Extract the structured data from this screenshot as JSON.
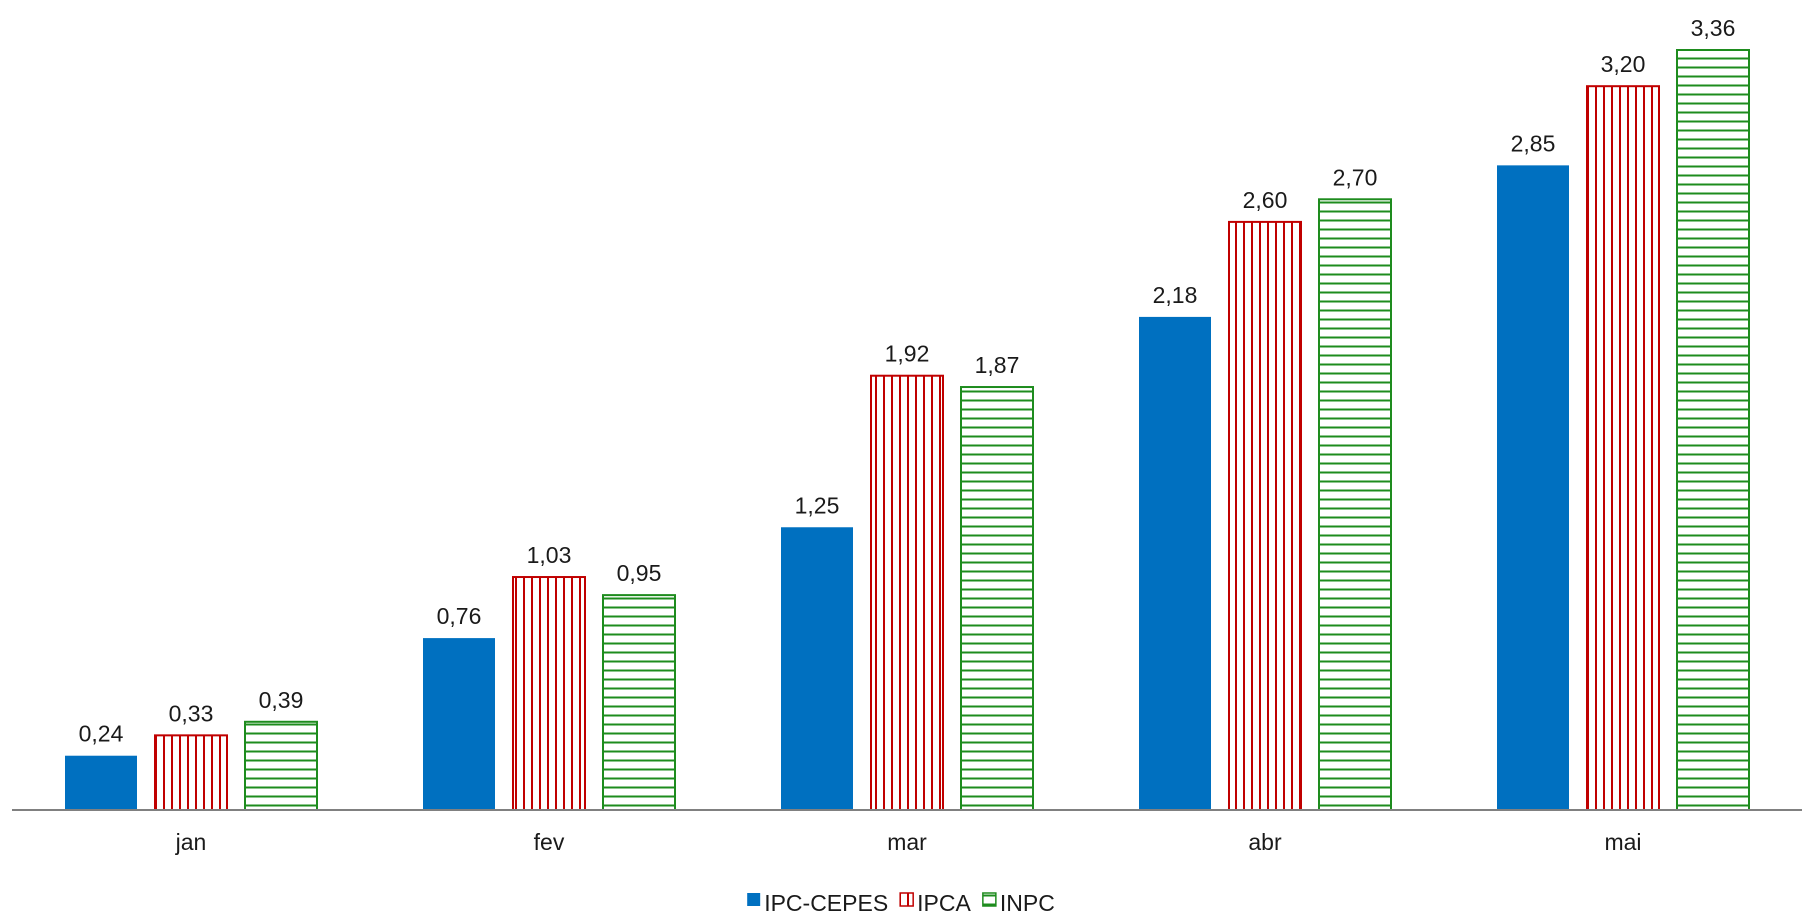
{
  "chart_data": {
    "type": "bar",
    "categories": [
      "jan",
      "fev",
      "mar",
      "abr",
      "mai"
    ],
    "series": [
      {
        "name": "IPC-CEPES",
        "values": [
          0.24,
          0.76,
          1.25,
          2.18,
          2.85
        ],
        "color": "#0070c0",
        "pattern": "solid"
      },
      {
        "name": "IPCA",
        "values": [
          0.33,
          1.03,
          1.92,
          2.6,
          3.2
        ],
        "color": "#c00000",
        "pattern": "vertical-stripes"
      },
      {
        "name": "INPC",
        "values": [
          0.39,
          0.95,
          1.87,
          2.7,
          3.36
        ],
        "color": "#1e8c1e",
        "pattern": "horizontal-stripes"
      }
    ],
    "data_labels": [
      [
        "0,24",
        "0,76",
        "1,25",
        "2,18",
        "2,85"
      ],
      [
        "0,33",
        "1,03",
        "1,92",
        "2,60",
        "3,20"
      ],
      [
        "0,39",
        "0,95",
        "1,87",
        "2,70",
        "3,36"
      ]
    ],
    "title": "",
    "xlabel": "",
    "ylabel": "",
    "ylim": [
      0,
      3.36
    ],
    "grid": false,
    "legend_position": "bottom",
    "axis_color": "#808080"
  }
}
